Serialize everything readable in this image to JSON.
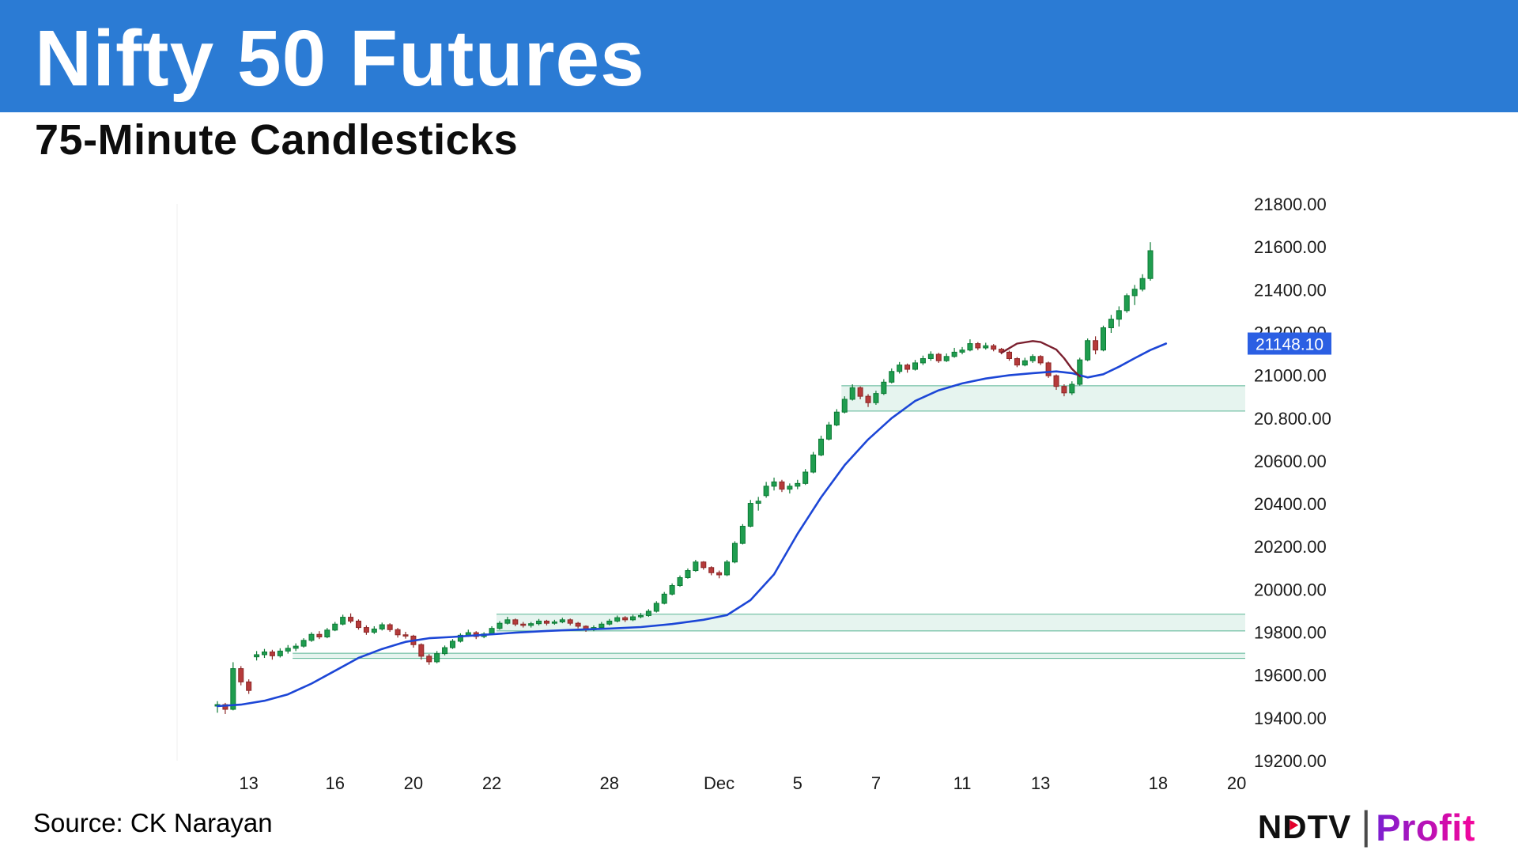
{
  "theme": {
    "banner_color": "#2b7bd4",
    "title_color": "#ffffff",
    "text_color": "#000000",
    "ndtv_red": "#e4002b",
    "profit_gradient_from": "#7b1fd1",
    "profit_gradient_to": "#f5059b"
  },
  "header": {
    "title": "Nifty 50 Futures",
    "subtitle": "75-Minute Candlesticks"
  },
  "footer": {
    "source": "Source: CK Narayan",
    "logo": {
      "n": "N",
      "d": "D",
      "tv": "TV",
      "separator": "|",
      "profit": "Profit"
    }
  },
  "chart_data": {
    "type": "candlestick",
    "title": "Nifty 50 Futures",
    "subtitle": "75-Minute Candlesticks",
    "xlabel": "",
    "ylabel": "",
    "grid": false,
    "ylim": [
      19200,
      21800
    ],
    "y_ticks": [
      {
        "price": 21800,
        "label": "21800.00"
      },
      {
        "price": 21600,
        "label": "21600.00"
      },
      {
        "price": 21400,
        "label": "21400.00"
      },
      {
        "price": 21200,
        "label": "21200.00"
      },
      {
        "price": 21000,
        "label": "21000.00"
      },
      {
        "price": 20800,
        "label": "20.800.00"
      },
      {
        "price": 20600,
        "label": "20600.00"
      },
      {
        "price": 20400,
        "label": "20400.00"
      },
      {
        "price": 20200,
        "label": "20200.00"
      },
      {
        "price": 20000,
        "label": "20000.00"
      },
      {
        "price": 19800,
        "label": "19800.00"
      },
      {
        "price": 19600,
        "label": "19600.00"
      },
      {
        "price": 19400,
        "label": "19400.00"
      },
      {
        "price": 19200,
        "label": "19200.00"
      }
    ],
    "x_ticks": [
      {
        "label": "13",
        "index": 4
      },
      {
        "label": "16",
        "index": 15
      },
      {
        "label": "20",
        "index": 25
      },
      {
        "label": "22",
        "index": 35
      },
      {
        "label": "28",
        "index": 50
      },
      {
        "label": "Dec",
        "index": 64
      },
      {
        "label": "5",
        "index": 74
      },
      {
        "label": "7",
        "index": 84
      },
      {
        "label": "11",
        "index": 95
      },
      {
        "label": "13",
        "index": 105
      },
      {
        "label": "18",
        "index": 120
      },
      {
        "label": "20",
        "index": 130
      }
    ],
    "last_price_label": {
      "text": "21148.10",
      "price": 21148.1,
      "bg": "#2b5fe3",
      "fg": "#ffffff"
    },
    "colors": {
      "up": "#1f9d4f",
      "up_border": "#0d7a35",
      "down": "#b63a3a",
      "down_border": "#8c2727",
      "ma": "#1c46d6",
      "ma2": "#7a1f2e",
      "band_fill": "rgba(88,179,147,0.15)",
      "band_border": "#58b393",
      "axis_text": "#1b1b1b",
      "gridline": "#efefef"
    },
    "bands": [
      {
        "name": "support-zone-19700",
        "from_index": 10,
        "price_low": 19678,
        "price_high": 19702
      },
      {
        "name": "support-zone-19850",
        "from_index": 36,
        "price_low": 19806,
        "price_high": 19884
      },
      {
        "name": "support-zone-20900",
        "from_index": 80,
        "price_low": 20833,
        "price_high": 20951
      }
    ],
    "ma_points": [
      [
        0,
        19455
      ],
      [
        3,
        19462
      ],
      [
        6,
        19480
      ],
      [
        9,
        19510
      ],
      [
        12,
        19560
      ],
      [
        15,
        19620
      ],
      [
        18,
        19680
      ],
      [
        21,
        19722
      ],
      [
        24,
        19755
      ],
      [
        27,
        19772
      ],
      [
        30,
        19778
      ],
      [
        34,
        19788
      ],
      [
        38,
        19798
      ],
      [
        42,
        19806
      ],
      [
        46,
        19812
      ],
      [
        50,
        19817
      ],
      [
        54,
        19824
      ],
      [
        58,
        19838
      ],
      [
        62,
        19858
      ],
      [
        65,
        19880
      ],
      [
        68,
        19950
      ],
      [
        71,
        20070
      ],
      [
        74,
        20260
      ],
      [
        77,
        20430
      ],
      [
        80,
        20580
      ],
      [
        83,
        20700
      ],
      [
        86,
        20800
      ],
      [
        89,
        20880
      ],
      [
        92,
        20930
      ],
      [
        95,
        20962
      ],
      [
        98,
        20985
      ],
      [
        101,
        21000
      ],
      [
        104,
        21010
      ],
      [
        107,
        21018
      ],
      [
        109,
        21010
      ],
      [
        111,
        20990
      ],
      [
        113,
        21005
      ],
      [
        115,
        21040
      ],
      [
        117,
        21080
      ],
      [
        119,
        21118
      ],
      [
        121,
        21148.1
      ]
    ],
    "ma2_points": [
      [
        100,
        21105
      ],
      [
        102,
        21148
      ],
      [
        104,
        21160
      ],
      [
        105,
        21155
      ],
      [
        107,
        21120
      ],
      [
        108,
        21080
      ],
      [
        109,
        21030
      ],
      [
        110,
        20995
      ]
    ],
    "candles": [
      [
        19455,
        19478,
        19424,
        19462
      ],
      [
        19462,
        19470,
        19418,
        19440
      ],
      [
        19440,
        19660,
        19435,
        19630
      ],
      [
        19630,
        19642,
        19552,
        19568
      ],
      [
        19568,
        19580,
        19512,
        19528
      ],
      [
        19685,
        19712,
        19668,
        19695
      ],
      [
        19695,
        19722,
        19680,
        19708
      ],
      [
        19708,
        19718,
        19672,
        19690
      ],
      [
        19690,
        19725,
        19682,
        19712
      ],
      [
        19712,
        19740,
        19700,
        19725
      ],
      [
        19725,
        19748,
        19712,
        19735
      ],
      [
        19735,
        19772,
        19728,
        19762
      ],
      [
        19762,
        19800,
        19755,
        19790
      ],
      [
        19790,
        19805,
        19768,
        19778
      ],
      [
        19778,
        19820,
        19772,
        19810
      ],
      [
        19810,
        19848,
        19805,
        19838
      ],
      [
        19838,
        19882,
        19832,
        19870
      ],
      [
        19870,
        19888,
        19842,
        19852
      ],
      [
        19852,
        19860,
        19812,
        19822
      ],
      [
        19822,
        19832,
        19788,
        19800
      ],
      [
        19800,
        19828,
        19792,
        19815
      ],
      [
        19815,
        19845,
        19808,
        19835
      ],
      [
        19835,
        19842,
        19802,
        19812
      ],
      [
        19812,
        19820,
        19775,
        19788
      ],
      [
        19788,
        19802,
        19770,
        19782
      ],
      [
        19782,
        19788,
        19728,
        19742
      ],
      [
        19742,
        19748,
        19672,
        19688
      ],
      [
        19688,
        19698,
        19648,
        19662
      ],
      [
        19662,
        19712,
        19655,
        19700
      ],
      [
        19700,
        19738,
        19692,
        19728
      ],
      [
        19728,
        19768,
        19722,
        19758
      ],
      [
        19758,
        19795,
        19752,
        19786
      ],
      [
        19786,
        19812,
        19778,
        19798
      ],
      [
        19798,
        19805,
        19768,
        19780
      ],
      [
        19780,
        19800,
        19772,
        19792
      ],
      [
        19792,
        19828,
        19786,
        19818
      ],
      [
        19818,
        19852,
        19812,
        19842
      ],
      [
        19842,
        19872,
        19836,
        19858
      ],
      [
        19858,
        19864,
        19828,
        19838
      ],
      [
        19838,
        19848,
        19822,
        19832
      ],
      [
        19832,
        19848,
        19822,
        19840
      ],
      [
        19840,
        19862,
        19832,
        19852
      ],
      [
        19852,
        19858,
        19832,
        19842
      ],
      [
        19842,
        19858,
        19835,
        19848
      ],
      [
        19848,
        19868,
        19842,
        19858
      ],
      [
        19858,
        19864,
        19832,
        19842
      ],
      [
        19842,
        19848,
        19818,
        19828
      ],
      [
        19828,
        19832,
        19802,
        19812
      ],
      [
        19812,
        19832,
        19805,
        19822
      ],
      [
        19822,
        19848,
        19816,
        19838
      ],
      [
        19838,
        19862,
        19832,
        19852
      ],
      [
        19852,
        19878,
        19846,
        19868
      ],
      [
        19868,
        19875,
        19848,
        19858
      ],
      [
        19858,
        19882,
        19852,
        19872
      ],
      [
        19872,
        19890,
        19865,
        19878
      ],
      [
        19878,
        19908,
        19872,
        19898
      ],
      [
        19898,
        19945,
        19892,
        19935
      ],
      [
        19935,
        19988,
        19930,
        19978
      ],
      [
        19978,
        20028,
        19972,
        20018
      ],
      [
        20018,
        20065,
        20012,
        20055
      ],
      [
        20055,
        20098,
        20050,
        20088
      ],
      [
        20088,
        20138,
        20082,
        20128
      ],
      [
        20128,
        20132,
        20092,
        20102
      ],
      [
        20102,
        20108,
        20066,
        20078
      ],
      [
        20078,
        20088,
        20052,
        20068
      ],
      [
        20068,
        20138,
        20062,
        20128
      ],
      [
        20128,
        20225,
        20122,
        20215
      ],
      [
        20215,
        20305,
        20210,
        20295
      ],
      [
        20295,
        20418,
        20290,
        20402
      ],
      [
        20402,
        20432,
        20368,
        20412
      ],
      [
        20438,
        20502,
        20428,
        20482
      ],
      [
        20482,
        20522,
        20462,
        20502
      ],
      [
        20502,
        20512,
        20455,
        20468
      ],
      [
        20468,
        20495,
        20448,
        20482
      ],
      [
        20482,
        20512,
        20468,
        20495
      ],
      [
        20495,
        20562,
        20488,
        20548
      ],
      [
        20548,
        20642,
        20542,
        20628
      ],
      [
        20628,
        20718,
        20622,
        20702
      ],
      [
        20702,
        20782,
        20696,
        20768
      ],
      [
        20768,
        20842,
        20762,
        20828
      ],
      [
        20828,
        20902,
        20822,
        20888
      ],
      [
        20888,
        20958,
        20882,
        20942
      ],
      [
        20942,
        20948,
        20888,
        20902
      ],
      [
        20902,
        20912,
        20852,
        20872
      ],
      [
        20872,
        20928,
        20862,
        20915
      ],
      [
        20915,
        20982,
        20908,
        20968
      ],
      [
        20968,
        21032,
        20962,
        21018
      ],
      [
        21018,
        21062,
        21008,
        21048
      ],
      [
        21048,
        21055,
        21012,
        21028
      ],
      [
        21028,
        21072,
        21022,
        21058
      ],
      [
        21058,
        21092,
        21048,
        21078
      ],
      [
        21078,
        21112,
        21068,
        21098
      ],
      [
        21098,
        21105,
        21058,
        21068
      ],
      [
        21068,
        21102,
        21062,
        21088
      ],
      [
        21088,
        21128,
        21082,
        21108
      ],
      [
        21108,
        21132,
        21098,
        21118
      ],
      [
        21118,
        21168,
        21112,
        21148
      ],
      [
        21148,
        21155,
        21118,
        21128
      ],
      [
        21128,
        21152,
        21120,
        21138
      ],
      [
        21138,
        21146,
        21112,
        21122
      ],
      [
        21122,
        21128,
        21098,
        21108
      ],
      [
        21108,
        21115,
        21068,
        21078
      ],
      [
        21078,
        21085,
        21038,
        21048
      ],
      [
        21048,
        21082,
        21042,
        21068
      ],
      [
        21068,
        21098,
        21058,
        21088
      ],
      [
        21088,
        21094,
        21048,
        21058
      ],
      [
        21058,
        21064,
        20988,
        20998
      ],
      [
        20998,
        21004,
        20932,
        20948
      ],
      [
        20948,
        20958,
        20902,
        20918
      ],
      [
        20918,
        20972,
        20908,
        20958
      ],
      [
        20958,
        21082,
        20952,
        21072
      ],
      [
        21072,
        21172,
        21066,
        21162
      ],
      [
        21162,
        21182,
        21098,
        21118
      ],
      [
        21118,
        21232,
        21112,
        21222
      ],
      [
        21222,
        21282,
        21198,
        21262
      ],
      [
        21262,
        21322,
        21228,
        21302
      ],
      [
        21302,
        21382,
        21292,
        21372
      ],
      [
        21372,
        21422,
        21328,
        21402
      ],
      [
        21402,
        21472,
        21392,
        21452
      ],
      [
        21452,
        21622,
        21442,
        21582
      ]
    ]
  }
}
